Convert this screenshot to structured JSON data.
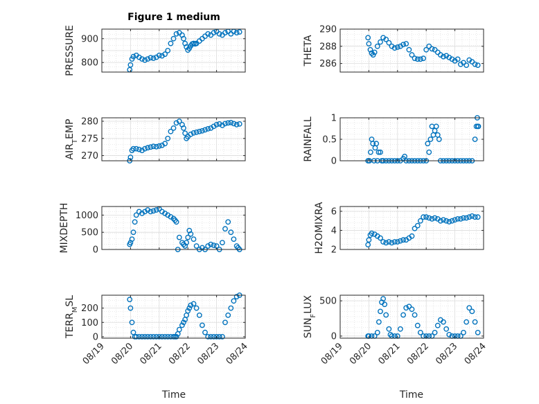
{
  "figure": {
    "title": "Figure 1 medium",
    "xlabel": "Time",
    "marker_color": "#0072BD"
  },
  "chart_data": [
    {
      "type": "scatter",
      "marker": "circle",
      "ylabel": "PRESSURE",
      "ylim": [
        760,
        940
      ],
      "yticks": [
        800,
        850,
        900
      ],
      "ytick_labels": [
        "800",
        "",
        "900"
      ],
      "xlim": [
        "08/19",
        "08/24"
      ],
      "x_unit": "day",
      "grid": true,
      "x": [
        0.97,
        1.0,
        1.05,
        1.1,
        1.2,
        1.3,
        1.4,
        1.5,
        1.6,
        1.7,
        1.8,
        1.9,
        2.0,
        2.1,
        2.2,
        2.3,
        2.4,
        2.5,
        2.6,
        2.7,
        2.8,
        2.85,
        2.9,
        2.95,
        3.0,
        3.05,
        3.1,
        3.15,
        3.2,
        3.25,
        3.3,
        3.4,
        3.5,
        3.6,
        3.7,
        3.8,
        3.9,
        4.0,
        4.1,
        4.2,
        4.3,
        4.4,
        4.5,
        4.6,
        4.7,
        4.8
      ],
      "values": [
        770,
        790,
        815,
        825,
        830,
        822,
        815,
        810,
        815,
        820,
        818,
        822,
        830,
        828,
        835,
        850,
        880,
        900,
        920,
        925,
        915,
        900,
        880,
        865,
        852,
        860,
        870,
        878,
        880,
        878,
        880,
        890,
        900,
        910,
        920,
        915,
        925,
        930,
        920,
        915,
        925,
        930,
        920,
        930,
        925,
        928
      ]
    },
    {
      "type": "scatter",
      "marker": "circle",
      "ylabel": "THETA",
      "ylim": [
        285,
        290
      ],
      "yticks": [
        286,
        288,
        290
      ],
      "ytick_labels": [
        "286",
        "288",
        "290"
      ],
      "xlim": [
        "08/19",
        "08/24"
      ],
      "x_unit": "day",
      "grid": true,
      "x": [
        0.97,
        1.0,
        1.05,
        1.1,
        1.15,
        1.2,
        1.3,
        1.4,
        1.5,
        1.6,
        1.7,
        1.8,
        1.9,
        2.0,
        2.1,
        2.2,
        2.3,
        2.4,
        2.5,
        2.6,
        2.7,
        2.8,
        2.9,
        3.0,
        3.1,
        3.2,
        3.3,
        3.4,
        3.5,
        3.6,
        3.7,
        3.8,
        3.9,
        4.0,
        4.1,
        4.2,
        4.3,
        4.4,
        4.5,
        4.6,
        4.7,
        4.8
      ],
      "values": [
        289,
        288.3,
        287.6,
        287.2,
        287.0,
        287.3,
        288.0,
        288.5,
        289.0,
        288.8,
        288.4,
        288.0,
        287.8,
        287.9,
        288.0,
        288.2,
        288.3,
        287.6,
        287.0,
        286.6,
        286.5,
        286.5,
        286.6,
        287.6,
        288.0,
        287.7,
        287.6,
        287.3,
        287.0,
        286.8,
        286.9,
        286.7,
        286.5,
        286.3,
        286.5,
        285.9,
        286.1,
        285.8,
        286.4,
        286.2,
        285.9,
        285.8
      ]
    },
    {
      "type": "scatter",
      "marker": "circle",
      "ylabel": "AIR_TEMP",
      "ylim": [
        268.5,
        281
      ],
      "yticks": [
        270,
        275,
        280
      ],
      "ytick_labels": [
        "270",
        "275",
        "280"
      ],
      "xlim": [
        "08/19",
        "08/24"
      ],
      "x_unit": "day",
      "grid": true,
      "x": [
        0.97,
        1.0,
        1.05,
        1.1,
        1.2,
        1.3,
        1.4,
        1.5,
        1.6,
        1.7,
        1.8,
        1.9,
        2.0,
        2.1,
        2.2,
        2.3,
        2.4,
        2.5,
        2.6,
        2.7,
        2.8,
        2.85,
        2.9,
        2.95,
        3.0,
        3.1,
        3.2,
        3.3,
        3.4,
        3.5,
        3.6,
        3.7,
        3.8,
        3.9,
        4.0,
        4.1,
        4.2,
        4.3,
        4.4,
        4.5,
        4.6,
        4.7,
        4.8
      ],
      "values": [
        268.5,
        269.5,
        271.5,
        272.0,
        272.0,
        271.8,
        271.5,
        272.0,
        272.3,
        272.5,
        272.7,
        272.6,
        272.8,
        273.0,
        273.5,
        275.0,
        277.0,
        278.0,
        279.5,
        280.0,
        279.0,
        278.0,
        276.5,
        275.0,
        275.5,
        276.2,
        276.6,
        276.8,
        277.0,
        277.2,
        277.5,
        277.8,
        278.0,
        278.5,
        279.0,
        279.2,
        278.8,
        279.3,
        279.5,
        279.6,
        279.3,
        279.0,
        279.2
      ]
    },
    {
      "type": "scatter",
      "marker": "circle",
      "ylabel": "RAINFALL",
      "ylim": [
        0,
        1
      ],
      "yticks": [
        0,
        0.5,
        1
      ],
      "ytick_labels": [
        "0",
        "0.5",
        "1"
      ],
      "xlim": [
        "08/19",
        "08/24"
      ],
      "x_unit": "day",
      "grid": true,
      "x": [
        0.97,
        1.02,
        1.06,
        1.1,
        1.14,
        1.18,
        1.22,
        1.26,
        1.3,
        1.34,
        1.4,
        1.45,
        1.5,
        1.6,
        1.7,
        1.8,
        1.9,
        2.0,
        2.1,
        2.2,
        2.25,
        2.3,
        2.4,
        2.5,
        2.6,
        2.7,
        2.8,
        2.9,
        3.0,
        3.05,
        3.1,
        3.15,
        3.2,
        3.25,
        3.3,
        3.35,
        3.4,
        3.45,
        3.5,
        3.6,
        3.7,
        3.8,
        3.9,
        4.0,
        4.1,
        4.2,
        4.3,
        4.4,
        4.5,
        4.6,
        4.7,
        4.75,
        4.78,
        4.8,
        4.82
      ],
      "values": [
        0,
        0,
        0.2,
        0.5,
        0.4,
        0,
        0.3,
        0.4,
        0,
        0.2,
        0.2,
        0,
        0,
        0,
        0,
        0,
        0,
        0,
        0,
        0.05,
        0.1,
        0,
        0,
        0,
        0,
        0,
        0,
        0,
        0,
        0.4,
        0.2,
        0.5,
        0.8,
        0.6,
        0.7,
        0.8,
        0.6,
        0.5,
        0,
        0,
        0,
        0,
        0,
        0,
        0,
        0,
        0,
        0,
        0,
        0,
        0.5,
        0.8,
        1.0,
        0.8,
        0.8
      ]
    },
    {
      "type": "scatter",
      "marker": "circle",
      "ylabel": "MIXDEPTH",
      "ylim": [
        0,
        1250
      ],
      "yticks": [
        0,
        500,
        1000
      ],
      "ytick_labels": [
        "0",
        "500",
        "1000"
      ],
      "xlim": [
        "08/19",
        "08/24"
      ],
      "x_unit": "day",
      "grid": true,
      "x": [
        0.97,
        1.0,
        1.05,
        1.1,
        1.15,
        1.2,
        1.3,
        1.4,
        1.5,
        1.6,
        1.7,
        1.8,
        1.9,
        2.0,
        2.1,
        2.2,
        2.3,
        2.4,
        2.5,
        2.55,
        2.6,
        2.65,
        2.7,
        2.8,
        2.85,
        2.9,
        2.95,
        3.0,
        3.05,
        3.1,
        3.2,
        3.3,
        3.4,
        3.5,
        3.6,
        3.7,
        3.8,
        3.9,
        4.0,
        4.1,
        4.2,
        4.3,
        4.4,
        4.5,
        4.6,
        4.7,
        4.75,
        4.8
      ],
      "values": [
        150,
        200,
        300,
        500,
        800,
        1000,
        1100,
        1050,
        1100,
        1150,
        1100,
        1120,
        1150,
        1180,
        1100,
        1050,
        1000,
        950,
        900,
        850,
        800,
        0,
        350,
        200,
        150,
        100,
        200,
        350,
        550,
        450,
        300,
        100,
        0,
        50,
        0,
        100,
        150,
        120,
        100,
        0,
        200,
        600,
        800,
        500,
        300,
        100,
        50,
        0
      ]
    },
    {
      "type": "scatter",
      "marker": "circle",
      "ylabel": "H2OMIXRA",
      "ylim": [
        2,
        6.5
      ],
      "yticks": [
        2,
        4,
        6
      ],
      "ytick_labels": [
        "2",
        "4",
        "6"
      ],
      "xlim": [
        "08/19",
        "08/24"
      ],
      "x_unit": "day",
      "grid": true,
      "x": [
        0.97,
        1.0,
        1.05,
        1.1,
        1.2,
        1.3,
        1.4,
        1.5,
        1.6,
        1.7,
        1.8,
        1.9,
        2.0,
        2.1,
        2.2,
        2.3,
        2.4,
        2.5,
        2.6,
        2.7,
        2.8,
        2.9,
        3.0,
        3.1,
        3.2,
        3.3,
        3.4,
        3.5,
        3.6,
        3.7,
        3.8,
        3.9,
        4.0,
        4.1,
        4.2,
        4.3,
        4.4,
        4.5,
        4.6,
        4.7,
        4.8
      ],
      "values": [
        2.5,
        3.0,
        3.5,
        3.7,
        3.6,
        3.4,
        3.2,
        2.8,
        2.7,
        2.8,
        2.7,
        2.8,
        2.8,
        2.9,
        3.0,
        3.0,
        3.2,
        3.4,
        4.2,
        4.5,
        5.0,
        5.4,
        5.4,
        5.3,
        5.2,
        5.3,
        5.2,
        5.0,
        5.1,
        5.0,
        4.9,
        5.0,
        5.1,
        5.2,
        5.2,
        5.3,
        5.3,
        5.4,
        5.5,
        5.4,
        5.4
      ]
    },
    {
      "type": "scatter",
      "marker": "circle",
      "ylabel": "TERR_MSL",
      "ylim": [
        -10,
        290
      ],
      "yticks": [
        0,
        100,
        200
      ],
      "ytick_labels": [
        "0",
        "100",
        "200"
      ],
      "xlim": [
        "08/19",
        "08/24"
      ],
      "x_unit": "day",
      "grid": true,
      "x": [
        0.97,
        1.0,
        1.05,
        1.1,
        1.15,
        1.2,
        1.3,
        1.4,
        1.5,
        1.6,
        1.7,
        1.8,
        1.9,
        2.0,
        2.1,
        2.2,
        2.3,
        2.4,
        2.5,
        2.55,
        2.6,
        2.65,
        2.7,
        2.8,
        2.85,
        2.9,
        2.95,
        3.0,
        3.05,
        3.1,
        3.2,
        3.3,
        3.4,
        3.5,
        3.6,
        3.7,
        3.8,
        3.9,
        4.0,
        4.1,
        4.2,
        4.3,
        4.4,
        4.5,
        4.6,
        4.7,
        4.8
      ],
      "values": [
        260,
        200,
        100,
        30,
        0,
        0,
        0,
        0,
        0,
        0,
        0,
        0,
        0,
        0,
        0,
        0,
        0,
        0,
        0,
        0,
        0,
        20,
        50,
        80,
        100,
        120,
        150,
        180,
        200,
        220,
        230,
        200,
        150,
        80,
        30,
        0,
        0,
        0,
        0,
        0,
        0,
        100,
        150,
        200,
        250,
        280,
        290
      ]
    },
    {
      "type": "scatter",
      "marker": "circle",
      "ylabel": "SUN_FLUX",
      "ylim": [
        -30,
        580
      ],
      "yticks": [
        0,
        500
      ],
      "ytick_labels": [
        "0",
        "500"
      ],
      "xlim": [
        "08/19",
        "08/24"
      ],
      "x_unit": "day",
      "grid": true,
      "x": [
        0.97,
        1.0,
        1.1,
        1.2,
        1.3,
        1.35,
        1.4,
        1.45,
        1.5,
        1.55,
        1.6,
        1.7,
        1.75,
        1.8,
        1.9,
        2.0,
        2.1,
        2.2,
        2.3,
        2.4,
        2.5,
        2.6,
        2.7,
        2.8,
        2.9,
        3.0,
        3.1,
        3.2,
        3.3,
        3.4,
        3.5,
        3.6,
        3.7,
        3.8,
        3.9,
        4.0,
        4.1,
        4.2,
        4.3,
        4.4,
        4.5,
        4.6,
        4.7,
        4.8
      ],
      "values": [
        0,
        0,
        0,
        0,
        50,
        200,
        350,
        480,
        530,
        450,
        300,
        100,
        20,
        0,
        0,
        0,
        100,
        300,
        400,
        420,
        380,
        300,
        150,
        50,
        0,
        0,
        0,
        0,
        50,
        150,
        230,
        200,
        100,
        20,
        0,
        0,
        0,
        0,
        50,
        200,
        400,
        350,
        200,
        50
      ]
    }
  ]
}
